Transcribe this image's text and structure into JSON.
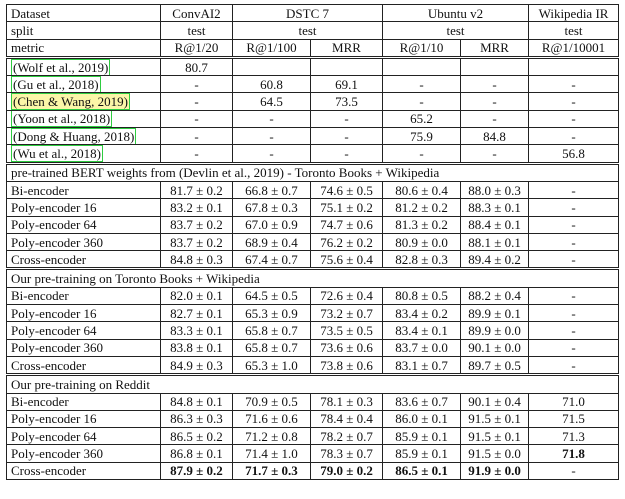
{
  "header": {
    "rows": [
      [
        "Dataset",
        "ConvAI2",
        "DSTC 7",
        "Ubuntu v2",
        "Wikipedia IR"
      ],
      [
        "split",
        "test",
        "test",
        "test",
        "test"
      ],
      [
        "metric",
        "R@1/20",
        "R@1/100",
        "MRR",
        "R@1/10",
        "MRR",
        "R@1/10001"
      ]
    ]
  },
  "sections": [
    {
      "rows": [
        [
          "(Wolf et al., 2019)",
          "80.7",
          "",
          "",
          "",
          "",
          ""
        ],
        [
          "(Gu et al., 2018)",
          "-",
          "60.8",
          "69.1",
          "-",
          "-",
          "-"
        ],
        [
          "(Chen & Wang, 2019)",
          "-",
          "64.5",
          "73.5",
          "-",
          "-",
          "-"
        ],
        [
          "(Yoon et al., 2018)",
          "-",
          "-",
          "-",
          "65.2",
          "-",
          "-"
        ],
        [
          "(Dong & Huang, 2018)",
          "-",
          "-",
          "-",
          "75.9",
          "84.8",
          "-"
        ],
        [
          "(Wu et al., 2018)",
          "-",
          "-",
          "-",
          "-",
          "-",
          "56.8"
        ]
      ]
    },
    {
      "title": "pre-trained BERT weights from (Devlin et al., 2019) - Toronto Books + Wikipedia",
      "rows": [
        [
          "Bi-encoder",
          "81.7 ± 0.2",
          "66.8 ± 0.7",
          "74.6 ± 0.5",
          "80.6 ± 0.4",
          "88.0 ± 0.3",
          "-"
        ],
        [
          "Poly-encoder 16",
          "83.2 ± 0.1",
          "67.8 ± 0.3",
          "75.1 ± 0.2",
          "81.2 ± 0.2",
          "88.3 ± 0.1",
          "-"
        ],
        [
          "Poly-encoder 64",
          "83.7 ± 0.2",
          "67.0 ± 0.9",
          "74.7 ± 0.6",
          "81.3 ± 0.2",
          "88.4 ± 0.1",
          "-"
        ],
        [
          "Poly-encoder 360",
          "83.7 ± 0.2",
          "68.9 ± 0.4",
          "76.2 ± 0.2",
          "80.9 ± 0.0",
          "88.1 ± 0.1",
          "-"
        ],
        [
          "Cross-encoder",
          "84.8 ± 0.3",
          "67.4 ± 0.7",
          "75.6 ± 0.4",
          "82.8 ± 0.3",
          "89.4 ± 0.2",
          "-"
        ]
      ]
    },
    {
      "title": "Our pre-training on Toronto Books + Wikipedia",
      "rows": [
        [
          "Bi-encoder",
          "82.0 ± 0.1",
          "64.5 ± 0.5",
          "72.6 ± 0.4",
          "80.8 ± 0.5",
          "88.2 ± 0.4",
          "-"
        ],
        [
          "Poly-encoder 16",
          "82.7 ± 0.1",
          "65.3 ± 0.9",
          "73.2 ± 0.7",
          "83.4 ± 0.2",
          "89.9 ± 0.1",
          "-"
        ],
        [
          "Poly-encoder 64",
          "83.3 ± 0.1",
          "65.8 ± 0.7",
          "73.5 ± 0.5",
          "83.4 ± 0.1",
          "89.9 ± 0.0",
          "-"
        ],
        [
          "Poly-encoder 360",
          "83.8 ± 0.1",
          "65.8 ± 0.7",
          "73.6 ± 0.6",
          "83.7 ± 0.0",
          "90.1 ± 0.0",
          "-"
        ],
        [
          "Cross-encoder",
          "84.9 ± 0.3",
          "65.3 ± 1.0",
          "73.8 ± 0.6",
          "83.1 ± 0.7",
          "89.7 ± 0.5",
          "-"
        ]
      ]
    },
    {
      "title": "Our pre-training on Reddit",
      "rows": [
        [
          "Bi-encoder",
          "84.8 ± 0.1",
          "70.9 ± 0.5",
          "78.1 ± 0.3",
          "83.6 ± 0.7",
          "90.1 ± 0.4",
          "71.0"
        ],
        [
          "Poly-encoder 16",
          "86.3 ± 0.3",
          "71.6 ± 0.6",
          "78.4 ± 0.4",
          "86.0 ± 0.1",
          "91.5 ± 0.1",
          "71.5"
        ],
        [
          "Poly-encoder 64",
          "86.5 ± 0.2",
          "71.2 ± 0.8",
          "78.2 ± 0.7",
          "85.9 ± 0.1",
          "91.5 ± 0.1",
          "71.3"
        ],
        [
          "Poly-encoder 360",
          "86.8 ± 0.1",
          "71.4 ± 1.0",
          "78.3 ± 0.7",
          "85.9 ± 0.1",
          "91.5 ± 0.0",
          "71.8"
        ],
        [
          "Cross-encoder",
          "87.9 ± 0.2",
          "71.7 ± 0.3",
          "79.0 ± 0.2",
          "86.5 ± 0.1",
          "91.9 ± 0.0",
          "-"
        ]
      ],
      "bold": [
        [
          4,
          1
        ],
        [
          4,
          2
        ],
        [
          4,
          3
        ],
        [
          4,
          4
        ],
        [
          4,
          5
        ],
        [
          3,
          6
        ]
      ]
    }
  ]
}
